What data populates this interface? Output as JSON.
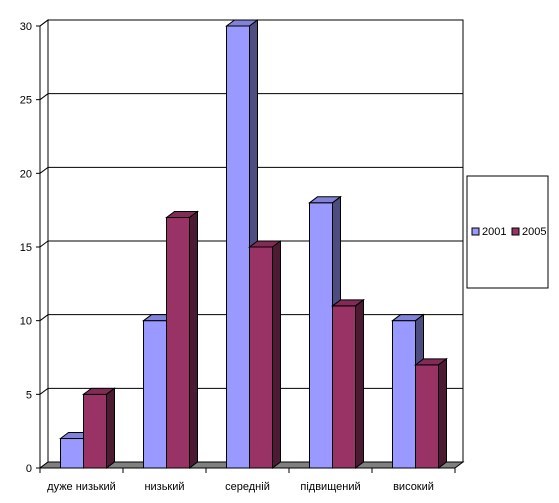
{
  "chart_data": {
    "type": "bar",
    "title": "",
    "xlabel": "",
    "ylabel": "",
    "categories": [
      "дуже низький",
      "низький",
      "середній",
      "підвищений",
      "високий"
    ],
    "series": [
      {
        "name": "2001",
        "values": [
          2,
          10,
          30,
          18,
          10
        ],
        "color": "#9999ff"
      },
      {
        "name": "2005",
        "values": [
          5,
          17,
          15,
          11,
          7
        ],
        "color": "#993366"
      }
    ],
    "ylim": [
      0,
      30
    ],
    "yticks": [
      0,
      5,
      10,
      15,
      20,
      25,
      30
    ],
    "grid": true,
    "legend": "right",
    "style": "3d-clustered"
  }
}
